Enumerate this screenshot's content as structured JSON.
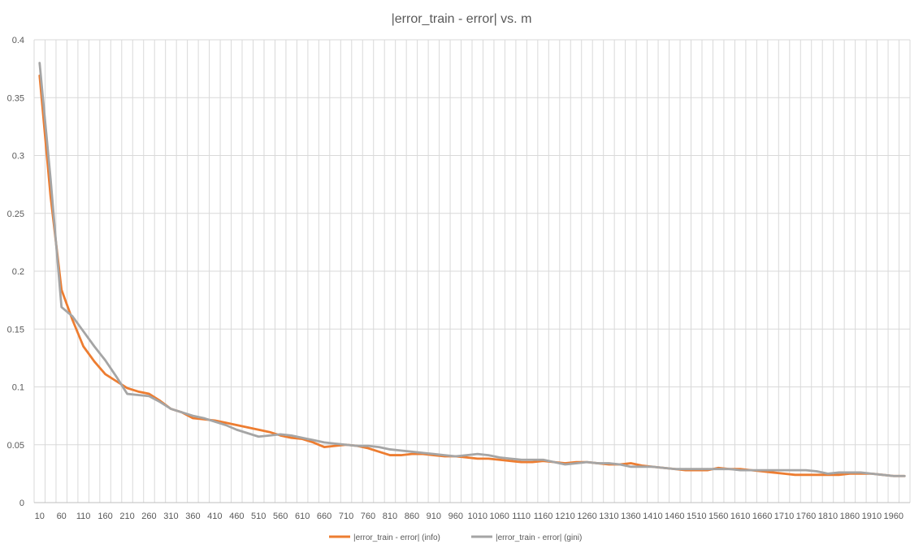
{
  "chart_data": {
    "type": "line",
    "title": "|error_train - error| vs. m",
    "xlabel": "",
    "ylabel": "",
    "ylim": [
      0,
      0.4
    ],
    "yticks": [
      0,
      0.05,
      0.1,
      0.15,
      0.2,
      0.25,
      0.3,
      0.35,
      0.4
    ],
    "grid": true,
    "legend_position": "bottom",
    "categories": [
      10,
      35,
      60,
      85,
      110,
      135,
      160,
      185,
      210,
      235,
      260,
      285,
      310,
      335,
      360,
      385,
      410,
      435,
      460,
      485,
      510,
      535,
      560,
      585,
      610,
      635,
      660,
      685,
      710,
      735,
      760,
      785,
      810,
      835,
      860,
      885,
      910,
      935,
      960,
      985,
      1010,
      1035,
      1060,
      1085,
      1110,
      1135,
      1160,
      1185,
      1210,
      1235,
      1260,
      1285,
      1310,
      1335,
      1360,
      1385,
      1410,
      1435,
      1460,
      1485,
      1510,
      1535,
      1560,
      1585,
      1610,
      1635,
      1660,
      1685,
      1710,
      1735,
      1760,
      1785,
      1810,
      1835,
      1860,
      1885,
      1910,
      1935,
      1960,
      1985
    ],
    "series": [
      {
        "name": "|error_train - error| (info)",
        "color": "#ED7D31",
        "values": [
          0.369,
          0.265,
          0.184,
          0.158,
          0.135,
          0.122,
          0.111,
          0.105,
          0.099,
          0.096,
          0.094,
          0.088,
          0.081,
          0.078,
          0.073,
          0.072,
          0.071,
          0.069,
          0.067,
          0.065,
          0.063,
          0.061,
          0.058,
          0.056,
          0.055,
          0.052,
          0.048,
          0.049,
          0.05,
          0.049,
          0.047,
          0.044,
          0.041,
          0.041,
          0.042,
          0.042,
          0.041,
          0.04,
          0.04,
          0.039,
          0.038,
          0.038,
          0.037,
          0.036,
          0.035,
          0.035,
          0.036,
          0.035,
          0.034,
          0.035,
          0.035,
          0.034,
          0.033,
          0.033,
          0.034,
          0.032,
          0.031,
          0.03,
          0.029,
          0.028,
          0.028,
          0.028,
          0.03,
          0.029,
          0.029,
          0.028,
          0.027,
          0.026,
          0.025,
          0.024,
          0.024,
          0.024,
          0.024,
          0.024,
          0.025,
          0.025,
          0.025,
          0.024,
          0.023,
          0.023
        ]
      },
      {
        "name": "|error_train - error| (gini)",
        "color": "#A5A5A5",
        "values": [
          0.38,
          0.28,
          0.169,
          0.161,
          0.148,
          0.135,
          0.123,
          0.109,
          0.094,
          0.093,
          0.092,
          0.087,
          0.081,
          0.078,
          0.075,
          0.073,
          0.07,
          0.067,
          0.063,
          0.06,
          0.057,
          0.058,
          0.059,
          0.058,
          0.056,
          0.054,
          0.052,
          0.051,
          0.05,
          0.049,
          0.049,
          0.048,
          0.046,
          0.045,
          0.044,
          0.043,
          0.042,
          0.041,
          0.04,
          0.041,
          0.042,
          0.041,
          0.039,
          0.038,
          0.037,
          0.037,
          0.037,
          0.035,
          0.033,
          0.034,
          0.035,
          0.034,
          0.034,
          0.033,
          0.031,
          0.031,
          0.031,
          0.03,
          0.029,
          0.029,
          0.029,
          0.029,
          0.029,
          0.029,
          0.028,
          0.028,
          0.028,
          0.028,
          0.028,
          0.028,
          0.028,
          0.027,
          0.025,
          0.026,
          0.026,
          0.026,
          0.025,
          0.024,
          0.023,
          0.023
        ]
      }
    ]
  }
}
